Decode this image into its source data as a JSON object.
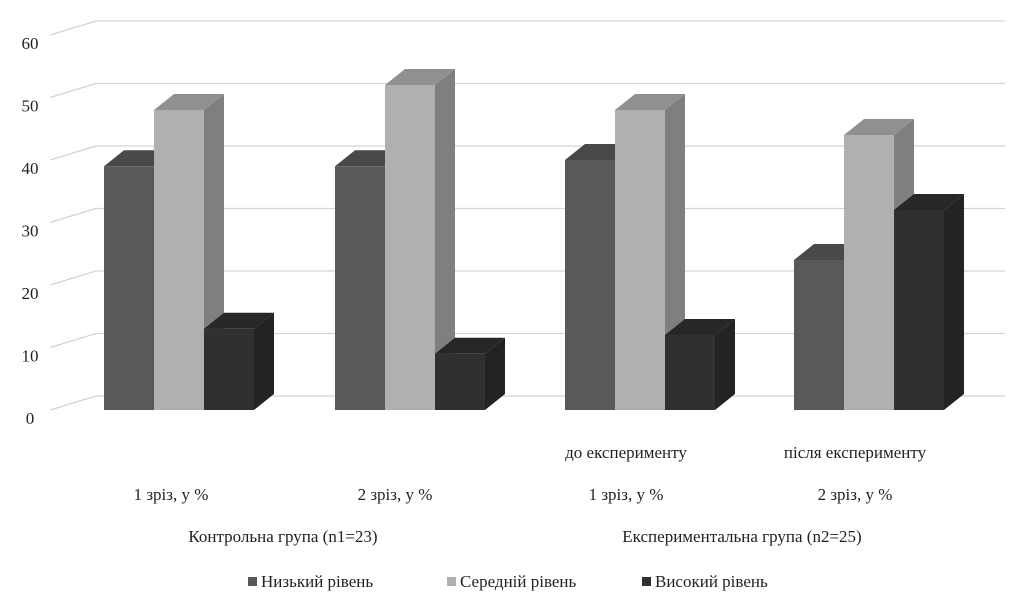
{
  "chart_data": {
    "type": "bar",
    "three_d": true,
    "y_ticks": [
      "0",
      "10",
      "20",
      "30",
      "40",
      "50",
      "60"
    ],
    "ylim": [
      0,
      60
    ],
    "grid": true,
    "legend_position": "bottom",
    "categories": [
      {
        "slice": "1 зріз, у %",
        "stage": ""
      },
      {
        "slice": "2 зріз, у %",
        "stage": ""
      },
      {
        "slice": "1 зріз, у %",
        "stage": "до експерименту"
      },
      {
        "slice": "2 зріз, у %",
        "stage": "після експерименту"
      }
    ],
    "groups": [
      {
        "label": "Контрольна група (n1=23)",
        "span": [
          0,
          1
        ]
      },
      {
        "label": "Експериментальна група (n2=25)",
        "span": [
          2,
          3
        ]
      }
    ],
    "series": [
      {
        "name": "Низький рівень",
        "color": "#595959",
        "values": [
          39,
          39,
          40,
          24
        ]
      },
      {
        "name": "Середній рівень",
        "color": "#b0b0b0",
        "values": [
          48,
          52,
          48,
          44
        ]
      },
      {
        "name": "Високий рівень",
        "color": "#303030",
        "values": [
          13,
          9,
          12,
          32
        ]
      }
    ]
  }
}
